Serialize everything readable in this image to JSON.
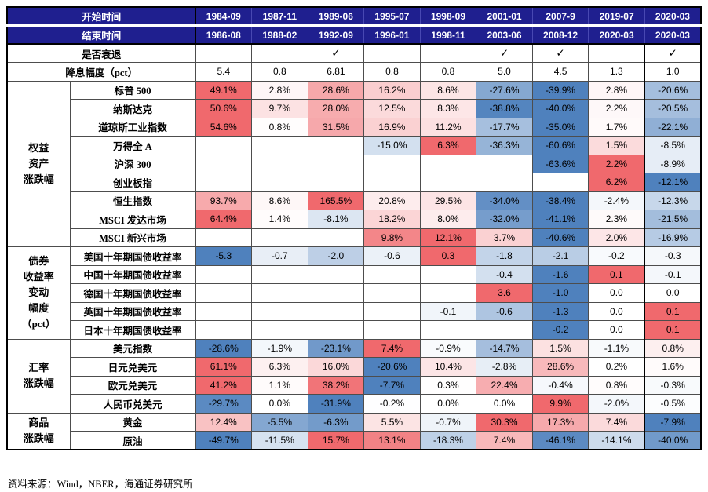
{
  "chart_data": {
    "type": "table",
    "shading_rule": "per-row diverging scale: value 0 = white, row max = positive_red, row min = negative_blue; blanks white",
    "header": {
      "start_label": "开始时间",
      "end_label": "结束时间",
      "recession_label": "是否衰退",
      "rate_cut_label": "降息幅度（pct）",
      "start_dates": [
        "1984-09",
        "1987-11",
        "1989-06",
        "1995-07",
        "1998-09",
        "2001-01",
        "2007-9",
        "2019-07",
        "2020-03"
      ],
      "end_dates": [
        "1986-08",
        "1988-02",
        "1992-09",
        "1996-01",
        "1998-11",
        "2003-06",
        "2008-12",
        "2020-03",
        "2020-03"
      ],
      "recession_checks": [
        "",
        "",
        "✓",
        "",
        "",
        "✓",
        "✓",
        "",
        "✓"
      ],
      "rate_cuts": [
        "5.4",
        "0.8",
        "6.81",
        "0.8",
        "0.8",
        "5.0",
        "4.5",
        "1.3",
        "1.0"
      ]
    },
    "groups": [
      {
        "label": "权益\n资产\n涨跌幅",
        "rows": [
          {
            "label": "标普 500",
            "values": [
              "49.1%",
              "2.8%",
              "28.6%",
              "16.2%",
              "8.6%",
              "-27.6%",
              "-39.9%",
              "2.8%",
              "-20.6%"
            ]
          },
          {
            "label": "纳斯达克",
            "values": [
              "50.6%",
              "9.7%",
              "28.0%",
              "12.5%",
              "8.3%",
              "-38.8%",
              "-40.0%",
              "2.2%",
              "-20.5%"
            ]
          },
          {
            "label": "道琼斯工业指数",
            "values": [
              "54.6%",
              "0.8%",
              "31.5%",
              "16.9%",
              "11.2%",
              "-17.7%",
              "-35.0%",
              "1.7%",
              "-22.1%"
            ]
          },
          {
            "label": "万得全 A",
            "values": [
              "",
              "",
              "",
              "-15.0%",
              "6.3%",
              "-36.3%",
              "-60.6%",
              "1.5%",
              "-8.5%"
            ]
          },
          {
            "label": "沪深 300",
            "values": [
              "",
              "",
              "",
              "",
              "",
              "",
              "-63.6%",
              "2.2%",
              "-8.9%"
            ]
          },
          {
            "label": "创业板指",
            "values": [
              "",
              "",
              "",
              "",
              "",
              "",
              "",
              "6.2%",
              "-12.1%"
            ]
          },
          {
            "label": "恒生指数",
            "values": [
              "93.7%",
              "8.6%",
              "165.5%",
              "20.8%",
              "29.5%",
              "-34.0%",
              "-38.4%",
              "-2.4%",
              "-12.3%"
            ]
          },
          {
            "label": "MSCI 发达市场",
            "values": [
              "64.4%",
              "1.4%",
              "-8.1%",
              "18.2%",
              "8.0%",
              "-32.0%",
              "-41.1%",
              "2.3%",
              "-21.5%"
            ]
          },
          {
            "label": "MSCI 新兴市场",
            "values": [
              "",
              "",
              "",
              "9.8%",
              "12.1%",
              "3.7%",
              "-40.6%",
              "2.0%",
              "-16.9%"
            ]
          }
        ]
      },
      {
        "label": "债券\n收益率\n变动\n幅度\n（pct）",
        "rows": [
          {
            "label": "美国十年期国债收益率",
            "values": [
              "-5.3",
              "-0.7",
              "-2.0",
              "-0.6",
              "0.3",
              "-1.8",
              "-2.1",
              "-0.2",
              "-0.3"
            ]
          },
          {
            "label": "中国十年期国债收益率",
            "values": [
              "",
              "",
              "",
              "",
              "",
              "-0.4",
              "-1.6",
              "0.1",
              "-0.1"
            ]
          },
          {
            "label": "德国十年期国债收益率",
            "values": [
              "",
              "",
              "",
              "",
              "",
              "3.6",
              "-1.0",
              "0.0",
              "0.0"
            ]
          },
          {
            "label": "英国十年期国债收益率",
            "values": [
              "",
              "",
              "",
              "",
              "-0.1",
              "-0.6",
              "-1.3",
              "0.0",
              "0.1"
            ]
          },
          {
            "label": "日本十年期国债收益率",
            "values": [
              "",
              "",
              "",
              "",
              "",
              "",
              "-0.2",
              "0.0",
              "0.1"
            ]
          }
        ]
      },
      {
        "label": "汇率\n涨跌幅",
        "rows": [
          {
            "label": "美元指数",
            "values": [
              "-28.6%",
              "-1.9%",
              "-23.1%",
              "7.4%",
              "-0.9%",
              "-14.7%",
              "1.5%",
              "-1.1%",
              "0.8%"
            ]
          },
          {
            "label": "日元兑美元",
            "values": [
              "61.1%",
              "6.3%",
              "16.0%",
              "-20.6%",
              "10.4%",
              "-2.8%",
              "28.6%",
              "0.2%",
              "1.6%"
            ]
          },
          {
            "label": "欧元兑美元",
            "values": [
              "41.2%",
              "1.1%",
              "38.2%",
              "-7.7%",
              "0.3%",
              "22.4%",
              "-0.4%",
              "0.8%",
              "-0.3%"
            ]
          },
          {
            "label": "人民币兑美元",
            "values": [
              "-29.7%",
              "0.0%",
              "-31.9%",
              "-0.2%",
              "0.0%",
              "0.0%",
              "9.9%",
              "-2.0%",
              "-0.5%"
            ]
          }
        ]
      },
      {
        "label": "商品\n涨跌幅",
        "rows": [
          {
            "label": "黄金",
            "values": [
              "12.4%",
              "-5.5%",
              "-6.3%",
              "5.5%",
              "-0.7%",
              "30.3%",
              "17.3%",
              "7.4%",
              "-7.9%"
            ]
          },
          {
            "label": "原油",
            "values": [
              "-49.7%",
              "-11.5%",
              "15.7%",
              "13.1%",
              "-18.3%",
              "7.4%",
              "-46.1%",
              "-14.1%",
              "-40.0%"
            ]
          }
        ]
      }
    ]
  },
  "footer": {
    "source_text": "资料来源：Wind，NBER，海通证券研究所"
  },
  "colors": {
    "header_bg": "#1F1F8F",
    "header_text": "#FFFFFF",
    "positive_red": "#F0696D",
    "negative_blue": "#4F81BD",
    "grid": "#4D4D4D"
  }
}
